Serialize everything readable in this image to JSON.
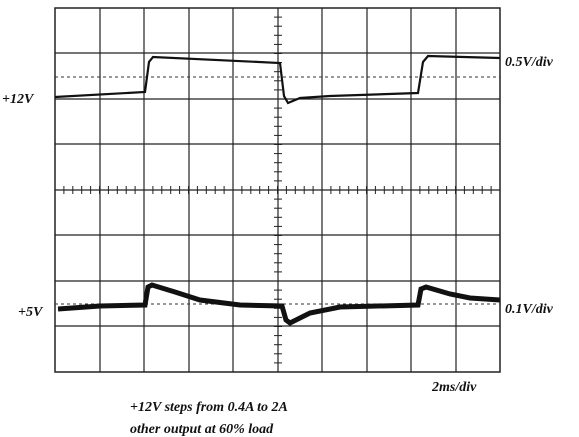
{
  "labels": {
    "upper_channel": "+12V",
    "upper_scale": "0.5V/div",
    "lower_channel": "+5V",
    "lower_scale": "0.1V/div",
    "time_scale": "2ms/div"
  },
  "caption": [
    "+12V steps from 0.4A to 2A",
    "other output at 60% load"
  ]
}
